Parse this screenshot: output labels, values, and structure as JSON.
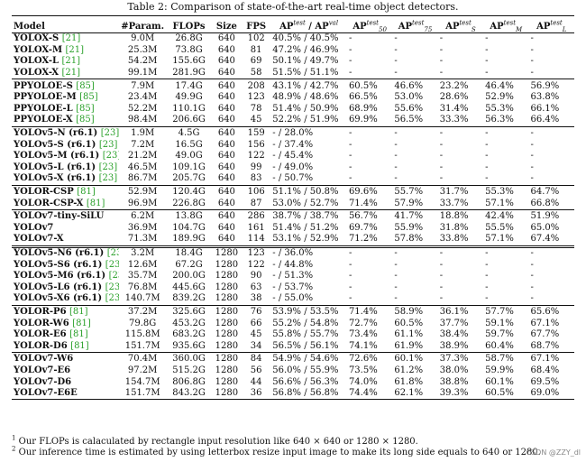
{
  "caption": "Table 2: Comparison of state-of-the-art real-time object detectors.",
  "header": {
    "model": "Model",
    "param": "#Param.",
    "flops": "FLOPs",
    "size": "Size",
    "fps": "FPS",
    "ap_base": "AP",
    "ap_sup_test": "test",
    "ap_sep": " / AP",
    "ap_sup_val": "val",
    "ap50_sub": "50",
    "ap75_sub": "75",
    "aps_sub": "S",
    "apm_sub": "M",
    "apl_sub": "L",
    "small_sup": "test"
  },
  "rows": [
    {
      "name": "YOLOX-S",
      "cite": "[21]",
      "param": "9.0M",
      "flops": "26.8G",
      "size": "640",
      "fps": "102",
      "ap": "40.5% / 40.5%",
      "ap50": "-",
      "ap75": "-",
      "aps": "-",
      "apm": "-",
      "apl": "-"
    },
    {
      "name": "YOLOX-M",
      "cite": "[21]",
      "param": "25.3M",
      "flops": "73.8G",
      "size": "640",
      "fps": "81",
      "ap": "47.2% / 46.9%",
      "ap50": "-",
      "ap75": "-",
      "aps": "-",
      "apm": "-",
      "apl": "-"
    },
    {
      "name": "YOLOX-L",
      "cite": "[21]",
      "param": "54.2M",
      "flops": "155.6G",
      "size": "640",
      "fps": "69",
      "ap": "50.1% / 49.7%",
      "ap50": "-",
      "ap75": "-",
      "aps": "-",
      "apm": "-",
      "apl": "-"
    },
    {
      "name": "YOLOX-X",
      "cite": "[21]",
      "param": "99.1M",
      "flops": "281.9G",
      "size": "640",
      "fps": "58",
      "ap": "51.5% / 51.1%",
      "ap50": "-",
      "ap75": "-",
      "aps": "-",
      "apm": "-",
      "apl": "-"
    },
    {
      "name": "PPYOLOE-S",
      "cite": "[85]",
      "param": "7.9M",
      "flops": "17.4G",
      "size": "640",
      "fps": "208",
      "ap": "43.1% / 42.7%",
      "ap50": "60.5%",
      "ap75": "46.6%",
      "aps": "23.2%",
      "apm": "46.4%",
      "apl": "56.9%"
    },
    {
      "name": "PPYOLOE-M",
      "cite": "[85]",
      "param": "23.4M",
      "flops": "49.9G",
      "size": "640",
      "fps": "123",
      "ap": "48.9% / 48.6%",
      "ap50": "66.5%",
      "ap75": "53.0%",
      "aps": "28.6%",
      "apm": "52.9%",
      "apl": "63.8%"
    },
    {
      "name": "PPYOLOE-L",
      "cite": "[85]",
      "param": "52.2M",
      "flops": "110.1G",
      "size": "640",
      "fps": "78",
      "ap": "51.4% / 50.9%",
      "ap50": "68.9%",
      "ap75": "55.6%",
      "aps": "31.4%",
      "apm": "55.3%",
      "apl": "66.1%"
    },
    {
      "name": "PPYOLOE-X",
      "cite": "[85]",
      "param": "98.4M",
      "flops": "206.6G",
      "size": "640",
      "fps": "45",
      "ap": "52.2% / 51.9%",
      "ap50": "69.9%",
      "ap75": "56.5%",
      "aps": "33.3%",
      "apm": "56.3%",
      "apl": "66.4%"
    },
    {
      "name": "YOLOv5-N (r6.1)",
      "cite": "[23]",
      "param": "1.9M",
      "flops": "4.5G",
      "size": "640",
      "fps": "159",
      "ap": "- / 28.0%",
      "ap50": "-",
      "ap75": "-",
      "aps": "-",
      "apm": "-",
      "apl": "-"
    },
    {
      "name": "YOLOv5-S (r6.1)",
      "cite": "[23]",
      "param": "7.2M",
      "flops": "16.5G",
      "size": "640",
      "fps": "156",
      "ap": "- / 37.4%",
      "ap50": "-",
      "ap75": "-",
      "aps": "-",
      "apm": "-",
      "apl": "-"
    },
    {
      "name": "YOLOv5-M (r6.1)",
      "cite": "[23]",
      "param": "21.2M",
      "flops": "49.0G",
      "size": "640",
      "fps": "122",
      "ap": "- / 45.4%",
      "ap50": "-",
      "ap75": "-",
      "aps": "-",
      "apm": "-",
      "apl": "-"
    },
    {
      "name": "YOLOv5-L (r6.1)",
      "cite": "[23]",
      "param": "46.5M",
      "flops": "109.1G",
      "size": "640",
      "fps": "99",
      "ap": "- / 49.0%",
      "ap50": "-",
      "ap75": "-",
      "aps": "-",
      "apm": "-",
      "apl": "-"
    },
    {
      "name": "YOLOv5-X (r6.1)",
      "cite": "[23]",
      "param": "86.7M",
      "flops": "205.7G",
      "size": "640",
      "fps": "83",
      "ap": "- / 50.7%",
      "ap50": "-",
      "ap75": "-",
      "aps": "-",
      "apm": "-",
      "apl": "-"
    },
    {
      "name": "YOLOR-CSP",
      "cite": "[81]",
      "param": "52.9M",
      "flops": "120.4G",
      "size": "640",
      "fps": "106",
      "ap": "51.1% / 50.8%",
      "ap50": "69.6%",
      "ap75": "55.7%",
      "aps": "31.7%",
      "apm": "55.3%",
      "apl": "64.7%"
    },
    {
      "name": "YOLOR-CSP-X",
      "cite": "[81]",
      "param": "96.9M",
      "flops": "226.8G",
      "size": "640",
      "fps": "87",
      "ap": "53.0% / 52.7%",
      "ap50": "71.4%",
      "ap75": "57.9%",
      "aps": "33.7%",
      "apm": "57.1%",
      "apl": "66.8%"
    },
    {
      "name": "YOLOv7-tiny-SiLU",
      "cite": "",
      "param": "6.2M",
      "flops": "13.8G",
      "size": "640",
      "fps": "286",
      "ap": "38.7% / 38.7%",
      "ap50": "56.7%",
      "ap75": "41.7%",
      "aps": "18.8%",
      "apm": "42.4%",
      "apl": "51.9%"
    },
    {
      "name": "YOLOv7",
      "cite": "",
      "param": "36.9M",
      "flops": "104.7G",
      "size": "640",
      "fps": "161",
      "ap": "51.4% / 51.2%",
      "ap50": "69.7%",
      "ap75": "55.9%",
      "aps": "31.8%",
      "apm": "55.5%",
      "apl": "65.0%"
    },
    {
      "name": "YOLOv7-X",
      "cite": "",
      "param": "71.3M",
      "flops": "189.9G",
      "size": "640",
      "fps": "114",
      "ap": "53.1% / 52.9%",
      "ap50": "71.2%",
      "ap75": "57.8%",
      "aps": "33.8%",
      "apm": "57.1%",
      "apl": "67.4%"
    },
    {
      "name": "YOLOv5-N6 (r6.1)",
      "cite": "[23]",
      "param": "3.2M",
      "flops": "18.4G",
      "size": "1280",
      "fps": "123",
      "ap": "- / 36.0%",
      "ap50": "-",
      "ap75": "-",
      "aps": "-",
      "apm": "-",
      "apl": "-"
    },
    {
      "name": "YOLOv5-S6 (r6.1)",
      "cite": "[23]",
      "param": "12.6M",
      "flops": "67.2G",
      "size": "1280",
      "fps": "122",
      "ap": "- / 44.8%",
      "ap50": "-",
      "ap75": "-",
      "aps": "-",
      "apm": "-",
      "apl": "-"
    },
    {
      "name": "YOLOv5-M6 (r6.1)",
      "cite": "[23]",
      "param": "35.7M",
      "flops": "200.0G",
      "size": "1280",
      "fps": "90",
      "ap": "- / 51.3%",
      "ap50": "-",
      "ap75": "-",
      "aps": "-",
      "apm": "-",
      "apl": "-"
    },
    {
      "name": "YOLOv5-L6 (r6.1)",
      "cite": "[23]",
      "param": "76.8M",
      "flops": "445.6G",
      "size": "1280",
      "fps": "63",
      "ap": "- / 53.7%",
      "ap50": "-",
      "ap75": "-",
      "aps": "-",
      "apm": "-",
      "apl": "-"
    },
    {
      "name": "YOLOv5-X6 (r6.1)",
      "cite": "[23]",
      "param": "140.7M",
      "flops": "839.2G",
      "size": "1280",
      "fps": "38",
      "ap": "- / 55.0%",
      "ap50": "-",
      "ap75": "-",
      "aps": "-",
      "apm": "-",
      "apl": "-"
    },
    {
      "name": "YOLOR-P6",
      "cite": "[81]",
      "param": "37.2M",
      "flops": "325.6G",
      "size": "1280",
      "fps": "76",
      "ap": "53.9% / 53.5%",
      "ap50": "71.4%",
      "ap75": "58.9%",
      "aps": "36.1%",
      "apm": "57.7%",
      "apl": "65.6%"
    },
    {
      "name": "YOLOR-W6",
      "cite": "[81]",
      "param": "79.8G",
      "flops": "453.2G",
      "size": "1280",
      "fps": "66",
      "ap": "55.2% / 54.8%",
      "ap50": "72.7%",
      "ap75": "60.5%",
      "aps": "37.7%",
      "apm": "59.1%",
      "apl": "67.1%"
    },
    {
      "name": "YOLOR-E6",
      "cite": "[81]",
      "param": "115.8M",
      "flops": "683.2G",
      "size": "1280",
      "fps": "45",
      "ap": "55.8% / 55.7%",
      "ap50": "73.4%",
      "ap75": "61.1%",
      "aps": "38.4%",
      "apm": "59.7%",
      "apl": "67.7%"
    },
    {
      "name": "YOLOR-D6",
      "cite": "[81]",
      "param": "151.7M",
      "flops": "935.6G",
      "size": "1280",
      "fps": "34",
      "ap": "56.5% / 56.1%",
      "ap50": "74.1%",
      "ap75": "61.9%",
      "aps": "38.9%",
      "apm": "60.4%",
      "apl": "68.7%"
    },
    {
      "name": "YOLOv7-W6",
      "cite": "",
      "param": "70.4M",
      "flops": "360.0G",
      "size": "1280",
      "fps": "84",
      "ap": "54.9% / 54.6%",
      "ap50": "72.6%",
      "ap75": "60.1%",
      "aps": "37.3%",
      "apm": "58.7%",
      "apl": "67.1%"
    },
    {
      "name": "YOLOv7-E6",
      "cite": "",
      "param": "97.2M",
      "flops": "515.2G",
      "size": "1280",
      "fps": "56",
      "ap": "56.0% / 55.9%",
      "ap50": "73.5%",
      "ap75": "61.2%",
      "aps": "38.0%",
      "apm": "59.9%",
      "apl": "68.4%"
    },
    {
      "name": "YOLOv7-D6",
      "cite": "",
      "param": "154.7M",
      "flops": "806.8G",
      "size": "1280",
      "fps": "44",
      "ap": "56.6% / 56.3%",
      "ap50": "74.0%",
      "ap75": "61.8%",
      "aps": "38.8%",
      "apm": "60.1%",
      "apl": "69.5%"
    },
    {
      "name": "YOLOv7-E6E",
      "cite": "",
      "param": "151.7M",
      "flops": "843.2G",
      "size": "1280",
      "fps": "36",
      "ap": "56.8% / 56.8%",
      "ap50": "74.4%",
      "ap75": "62.1%",
      "aps": "39.3%",
      "apm": "60.5%",
      "apl": "69.0%"
    }
  ],
  "group_starts": [
    4,
    8,
    13,
    15,
    23,
    27
  ],
  "double_rule_before": 18,
  "footnotes": [
    {
      "mark": "1",
      "text": " Our FLOPs is calaculated by rectangle input resolution like 640 × 640 or 1280 × 1280."
    },
    {
      "mark": "2",
      "text": " Our inference time is estimated by using letterbox resize input image to make its long side equals to 640 or 1280."
    }
  ],
  "watermark": "CSDN @ZZY_dl"
}
